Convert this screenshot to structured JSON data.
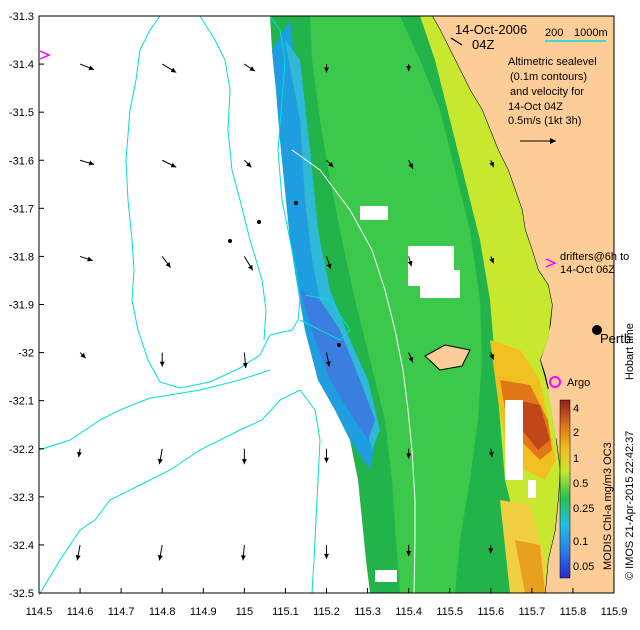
{
  "map": {
    "date_title": "14-Oct-2006",
    "time_title": "04Z",
    "scale_label": "200",
    "depth_label": "1000m",
    "legend_lines": [
      "Altimetric sealevel",
      "(0.1m contours)",
      "and velocity for",
      "14-Oct 04Z",
      "0.5m/s (1kt 3h)"
    ],
    "drifters_line1": "drifters@6h to",
    "drifters_line2": "14-Oct 06Z",
    "city_label": "Perth",
    "argo_label": "Argo",
    "hobart_text": "Hobart time",
    "credit_text": "© IMOS 21-Apr-2015 22:42:37",
    "colorbar_title": "MODIS Chl-a mg/m3 OC3",
    "colors": {
      "land": "#fdcd98",
      "bathy_200": "#00dddd",
      "bathy_1000": "#0af4f4",
      "marker": "#ff00ff",
      "argo_circle": "#ff00ff"
    }
  },
  "x_axis": {
    "ticks": [
      114.5,
      114.6,
      114.7,
      114.8,
      114.9,
      115,
      115.1,
      115.2,
      115.3,
      115.4,
      115.5,
      115.6,
      115.7,
      115.8,
      115.9
    ],
    "tick_labels": [
      "114.5",
      "114.6",
      "114.7",
      "114.8",
      "114.9",
      "115",
      "115.1",
      "115.2",
      "115.3",
      "115.4",
      "115.5",
      "115.6",
      "115.7",
      "115.8",
      "115.9"
    ]
  },
  "y_axis": {
    "ticks": [
      -31.3,
      -31.4,
      -31.5,
      -31.6,
      -31.7,
      -31.8,
      -31.9,
      -32,
      -32.1,
      -32.2,
      -32.3,
      -32.4,
      -32.5
    ],
    "tick_labels": [
      "-31.3",
      "-31.4",
      "-31.5",
      "-31.6",
      "-31.7",
      "-31.8",
      "-31.9",
      "-32",
      "-32.1",
      "-32.2",
      "-32.3",
      "-32.4",
      "-32.5"
    ]
  },
  "colorbar": {
    "labels": [
      "4",
      "2",
      "1",
      "0.5",
      "0.25",
      "0.1",
      "0.05"
    ]
  },
  "velocity_vectors": [
    {
      "lon": 114.6,
      "lat": -31.4,
      "u": 0.02,
      "v": -0.008
    },
    {
      "lon": 114.8,
      "lat": -31.4,
      "u": 0.02,
      "v": -0.012
    },
    {
      "lon": 115.0,
      "lat": -31.4,
      "u": 0.015,
      "v": -0.01
    },
    {
      "lon": 115.2,
      "lat": -31.4,
      "u": 0.0,
      "v": -0.012
    },
    {
      "lon": 115.4,
      "lat": -31.4,
      "u": 0.0,
      "v": -0.01
    },
    {
      "lon": 114.6,
      "lat": -31.6,
      "u": 0.02,
      "v": -0.006
    },
    {
      "lon": 114.8,
      "lat": -31.6,
      "u": 0.02,
      "v": -0.01
    },
    {
      "lon": 115.0,
      "lat": -31.6,
      "u": 0.01,
      "v": -0.01
    },
    {
      "lon": 115.2,
      "lat": -31.6,
      "u": 0.01,
      "v": -0.01
    },
    {
      "lon": 115.4,
      "lat": -31.6,
      "u": 0.006,
      "v": -0.012
    },
    {
      "lon": 115.6,
      "lat": -31.6,
      "u": 0.004,
      "v": -0.01
    },
    {
      "lon": 114.6,
      "lat": -31.8,
      "u": 0.018,
      "v": -0.006
    },
    {
      "lon": 114.8,
      "lat": -31.8,
      "u": 0.012,
      "v": -0.016
    },
    {
      "lon": 115.0,
      "lat": -31.8,
      "u": 0.012,
      "v": -0.02
    },
    {
      "lon": 115.2,
      "lat": -31.8,
      "u": 0.006,
      "v": -0.018
    },
    {
      "lon": 115.4,
      "lat": -31.8,
      "u": 0.004,
      "v": -0.014
    },
    {
      "lon": 115.6,
      "lat": -31.8,
      "u": 0.004,
      "v": -0.01
    },
    {
      "lon": 114.6,
      "lat": -32.0,
      "u": 0.008,
      "v": -0.008
    },
    {
      "lon": 114.8,
      "lat": -32.0,
      "u": 0.0,
      "v": -0.02
    },
    {
      "lon": 115.0,
      "lat": -32.0,
      "u": 0.002,
      "v": -0.022
    },
    {
      "lon": 115.2,
      "lat": -32.0,
      "u": 0.004,
      "v": -0.02
    },
    {
      "lon": 115.4,
      "lat": -32.0,
      "u": 0.006,
      "v": -0.014
    },
    {
      "lon": 115.6,
      "lat": -32.0,
      "u": 0.004,
      "v": -0.01
    },
    {
      "lon": 114.6,
      "lat": -32.2,
      "u": -0.002,
      "v": -0.012
    },
    {
      "lon": 114.8,
      "lat": -32.2,
      "u": -0.004,
      "v": -0.022
    },
    {
      "lon": 115.0,
      "lat": -32.2,
      "u": 0.0,
      "v": -0.022
    },
    {
      "lon": 115.2,
      "lat": -32.2,
      "u": 0.0,
      "v": -0.02
    },
    {
      "lon": 115.4,
      "lat": -32.2,
      "u": 0.0,
      "v": -0.014
    },
    {
      "lon": 115.6,
      "lat": -32.2,
      "u": 0.002,
      "v": -0.012
    },
    {
      "lon": 114.6,
      "lat": -32.4,
      "u": -0.004,
      "v": -0.022
    },
    {
      "lon": 114.8,
      "lat": -32.4,
      "u": -0.004,
      "v": -0.022
    },
    {
      "lon": 115.0,
      "lat": -32.4,
      "u": -0.002,
      "v": -0.022
    },
    {
      "lon": 115.2,
      "lat": -32.4,
      "u": 0.0,
      "v": -0.02
    },
    {
      "lon": 115.4,
      "lat": -32.4,
      "u": 0.0,
      "v": -0.016
    },
    {
      "lon": 115.6,
      "lat": -32.4,
      "u": 0.0,
      "v": -0.012
    }
  ]
}
